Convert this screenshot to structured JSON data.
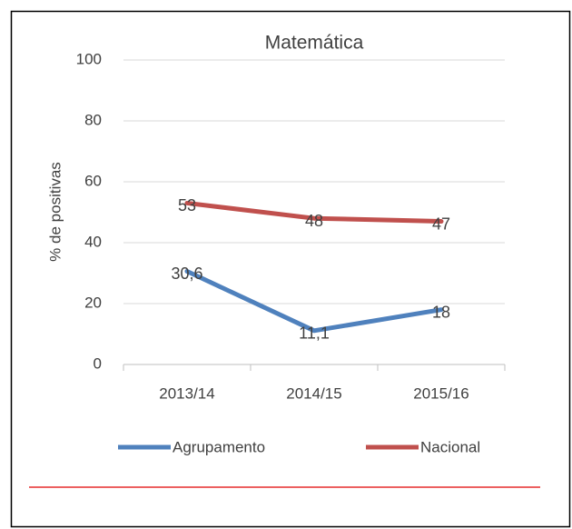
{
  "chart_data": {
    "type": "line",
    "title": "Matemática",
    "ylabel": "% de positivas",
    "categories": [
      "2013/14",
      "2014/15",
      "2015/16"
    ],
    "series": [
      {
        "name": "Agrupamento",
        "color": "#4f81bd",
        "values": [
          30.6,
          11.1,
          18
        ],
        "value_labels": [
          "30,6",
          "11,1",
          "18"
        ]
      },
      {
        "name": "Nacional",
        "color": "#c0504d",
        "values": [
          53,
          48,
          47
        ]
      }
    ],
    "ylim": [
      0,
      100
    ],
    "yticks": [
      0,
      20,
      40,
      60,
      80,
      100
    ],
    "grid": true,
    "legend": "bottom"
  }
}
